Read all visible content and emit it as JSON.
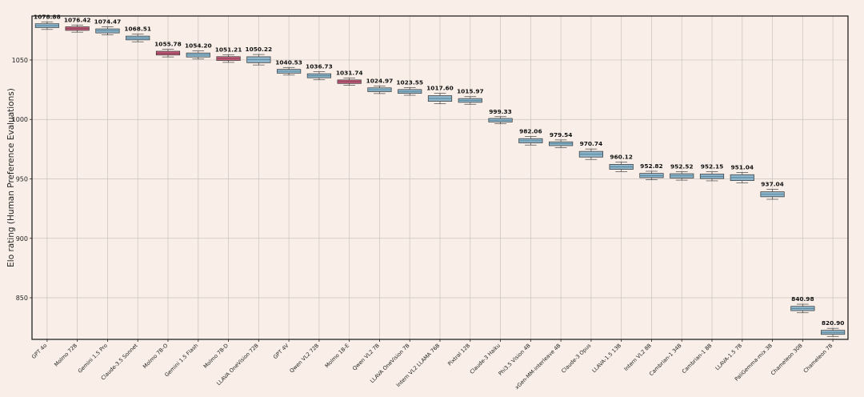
{
  "chart_data": {
    "type": "box",
    "ylabel": "Elo rating (Human Preference Evaluations)",
    "xlabel": "",
    "title": "",
    "ylim": [
      815,
      1087
    ],
    "yticks": [
      850,
      900,
      950,
      1000,
      1050
    ],
    "grid": true,
    "colors": {
      "default": "#8fb6cd",
      "highlight": "#c4607e",
      "median": "#4a7a8c",
      "frame": "#222222",
      "background": "#f9efe8"
    },
    "categories": [
      "GPT 4o",
      "Molmo 72B",
      "Gemini 1.5 Pro",
      "Claude-3.5 Sonnet",
      "Molmo 7B-O",
      "Gemini 1.5 Flash",
      "Molmo 7B-D",
      "LLAVA OneVision 72B",
      "GPT 4V",
      "Qwen VL2 72B",
      "Molmo 1B-E",
      "Qwen VL2 7B",
      "LLAVA OneVision 7B",
      "Intern VL2 LLAMA 76B",
      "Pixtral 12B",
      "Claude-3 Haiku",
      "Phi3.5 Vision 4B",
      "xGen-MM-interleave 4B",
      "Claude-3 Opus",
      "LLAVA-1.5 13B",
      "Intern VL2 8B",
      "Cambrian-1 34B",
      "Cambrian-1 8B",
      "LLAVA-1.5 7B",
      "PaliGemma-mix 3B",
      "Chameleon 30B",
      "Chameleon 7B"
    ],
    "values": [
      1078.88,
      1076.42,
      1074.47,
      1068.51,
      1055.78,
      1054.2,
      1051.21,
      1050.22,
      1040.53,
      1036.73,
      1031.74,
      1024.97,
      1023.55,
      1017.6,
      1015.97,
      999.33,
      982.06,
      979.54,
      970.74,
      960.12,
      952.82,
      952.52,
      952.15,
      951.04,
      937.04,
      840.98,
      820.9
    ],
    "value_labels": [
      "1078.88",
      "1076.42",
      "1074.47",
      "1068.51",
      "1055.78",
      "1054.20",
      "1051.21",
      "1050.22",
      "1040.53",
      "1036.73",
      "1031.74",
      "1024.97",
      "1023.55",
      "1017.60",
      "1015.97",
      "999.33",
      "982.06",
      "979.54",
      "970.74",
      "960.12",
      "952.82",
      "952.52",
      "952.15",
      "951.04",
      "937.04",
      "840.98",
      "820.90"
    ],
    "box_half_range": [
      1.6,
      1.5,
      1.7,
      1.6,
      1.6,
      1.7,
      1.6,
      2.5,
      1.6,
      1.7,
      1.5,
      1.6,
      1.6,
      2.4,
      1.6,
      1.5,
      1.8,
      1.6,
      2.4,
      2.1,
      1.8,
      1.8,
      1.9,
      2.5,
      2.1,
      1.8,
      1.7
    ],
    "whisker_half_range": [
      3.2,
      3.0,
      3.4,
      3.2,
      3.2,
      3.4,
      3.2,
      4.4,
      3.2,
      3.4,
      3.0,
      3.2,
      3.2,
      4.4,
      3.2,
      3.0,
      3.6,
      3.2,
      4.4,
      4.0,
      3.6,
      3.6,
      3.8,
      4.4,
      4.2,
      3.6,
      3.4
    ],
    "highlighted": [
      "Molmo 72B",
      "Molmo 7B-O",
      "Molmo 7B-D",
      "Molmo 1B-E"
    ]
  }
}
